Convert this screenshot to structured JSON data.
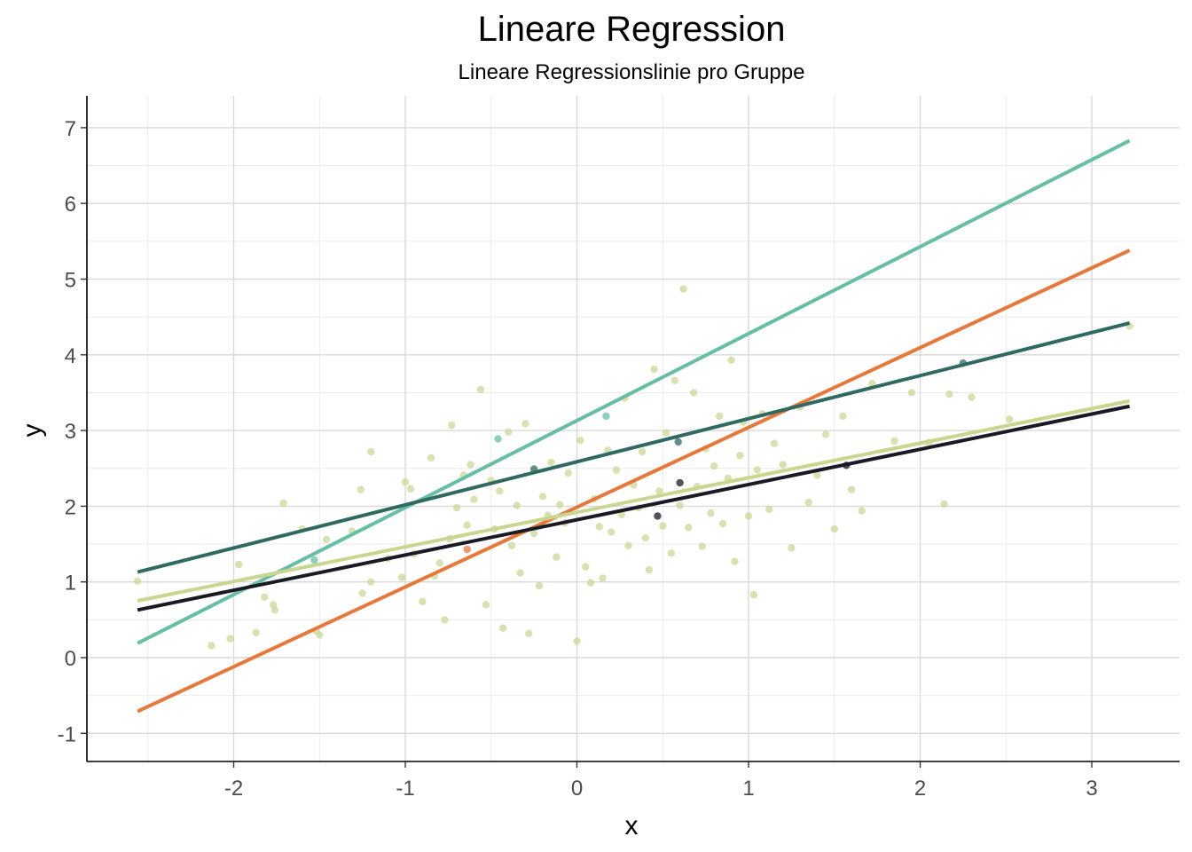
{
  "chart_data": {
    "type": "scatter",
    "title": "Lineare Regression",
    "subtitle": "Lineare Regressionslinie pro Gruppe",
    "xlabel": "x",
    "ylabel": "y",
    "xlim": [
      -2.6,
      3.3
    ],
    "ylim": [
      -1.4,
      7.4
    ],
    "x_ticks": [
      -2,
      -1,
      0,
      1,
      2,
      3
    ],
    "y_ticks": [
      -1,
      0,
      1,
      2,
      3,
      4,
      5,
      6,
      7
    ],
    "grid": true,
    "legend": "none",
    "lines": [
      {
        "color": "#66bfa5",
        "x": [
          -2.56,
          3.22
        ],
        "y": [
          0.19,
          6.83
        ]
      },
      {
        "color": "#e8783a",
        "x": [
          -2.56,
          3.22
        ],
        "y": [
          -0.71,
          5.38
        ]
      },
      {
        "color": "#2f6a60",
        "x": [
          -2.56,
          3.22
        ],
        "y": [
          1.13,
          4.42
        ]
      },
      {
        "color": "#c8d68e",
        "x": [
          -2.56,
          3.22
        ],
        "y": [
          0.75,
          3.39
        ]
      },
      {
        "color": "#1a1a24",
        "x": [
          -2.56,
          3.22
        ],
        "y": [
          0.63,
          3.32
        ]
      }
    ],
    "series": [
      {
        "color": "#66bfa5",
        "points": [
          [
            -0.46,
            2.89
          ],
          [
            0.17,
            3.19
          ],
          [
            -1.53,
            1.29
          ]
        ]
      },
      {
        "color": "#e8783a",
        "points": [
          [
            -0.64,
            1.43
          ]
        ]
      },
      {
        "color": "#2f6a60",
        "points": [
          [
            0.59,
            2.85
          ],
          [
            2.25,
            3.89
          ],
          [
            -0.25,
            2.49
          ]
        ]
      },
      {
        "color": "#1a1a24",
        "points": [
          [
            0.6,
            2.31
          ],
          [
            0.47,
            1.87
          ],
          [
            1.57,
            2.54
          ]
        ]
      },
      {
        "color": "#c8d68e",
        "points": [
          [
            -2.56,
            1.01
          ],
          [
            -2.13,
            0.16
          ],
          [
            -2.02,
            0.25
          ],
          [
            -1.97,
            1.23
          ],
          [
            -1.87,
            0.33
          ],
          [
            -1.82,
            0.8
          ],
          [
            -1.77,
            0.7
          ],
          [
            -1.76,
            0.63
          ],
          [
            -1.71,
            2.04
          ],
          [
            -1.6,
            1.7
          ],
          [
            -1.5,
            0.3
          ],
          [
            -1.46,
            1.56
          ],
          [
            -1.52,
            0.35
          ],
          [
            -1.31,
            1.67
          ],
          [
            -1.26,
            2.22
          ],
          [
            -1.25,
            0.85
          ],
          [
            -1.2,
            1.0
          ],
          [
            -1.2,
            2.72
          ],
          [
            -1.1,
            1.31
          ],
          [
            -1.02,
            1.06
          ],
          [
            -1.0,
            2.32
          ],
          [
            -0.97,
            2.23
          ],
          [
            -0.95,
            1.37
          ],
          [
            -0.9,
            0.74
          ],
          [
            -0.85,
            2.64
          ],
          [
            -0.83,
            1.08
          ],
          [
            -0.8,
            1.25
          ],
          [
            -0.77,
            0.5
          ],
          [
            -0.74,
            1.57
          ],
          [
            -0.73,
            3.07
          ],
          [
            -0.7,
            1.98
          ],
          [
            -0.66,
            2.41
          ],
          [
            -0.64,
            1.75
          ],
          [
            -0.62,
            2.55
          ],
          [
            -0.6,
            2.09
          ],
          [
            -0.56,
            3.54
          ],
          [
            -0.53,
            0.7
          ],
          [
            -0.5,
            2.34
          ],
          [
            -0.48,
            1.7
          ],
          [
            -0.45,
            2.2
          ],
          [
            -0.43,
            0.39
          ],
          [
            -0.4,
            2.98
          ],
          [
            -0.38,
            1.48
          ],
          [
            -0.35,
            2.01
          ],
          [
            -0.33,
            1.12
          ],
          [
            -0.3,
            3.09
          ],
          [
            -0.28,
            0.32
          ],
          [
            -0.25,
            1.64
          ],
          [
            -0.22,
            0.95
          ],
          [
            -0.2,
            2.13
          ],
          [
            -0.17,
            1.88
          ],
          [
            -0.15,
            2.58
          ],
          [
            -0.12,
            1.33
          ],
          [
            -0.1,
            2.02
          ],
          [
            -0.07,
            1.78
          ],
          [
            -0.05,
            2.44
          ],
          [
            0.0,
            0.22
          ],
          [
            0.02,
            2.87
          ],
          [
            0.05,
            1.2
          ],
          [
            0.08,
            0.99
          ],
          [
            0.1,
            2.1
          ],
          [
            0.13,
            1.73
          ],
          [
            0.15,
            1.05
          ],
          [
            0.18,
            2.74
          ],
          [
            0.2,
            1.66
          ],
          [
            0.23,
            2.48
          ],
          [
            0.26,
            1.89
          ],
          [
            0.28,
            3.43
          ],
          [
            0.3,
            1.48
          ],
          [
            0.33,
            2.28
          ],
          [
            0.36,
            1.98
          ],
          [
            0.38,
            2.72
          ],
          [
            0.4,
            1.58
          ],
          [
            0.42,
            1.16
          ],
          [
            0.45,
            3.81
          ],
          [
            0.48,
            2.2
          ],
          [
            0.5,
            1.74
          ],
          [
            0.52,
            2.97
          ],
          [
            0.55,
            1.38
          ],
          [
            0.57,
            3.66
          ],
          [
            0.6,
            2.01
          ],
          [
            0.62,
            4.87
          ],
          [
            0.65,
            1.72
          ],
          [
            0.68,
            3.5
          ],
          [
            0.7,
            2.26
          ],
          [
            0.73,
            1.47
          ],
          [
            0.75,
            2.76
          ],
          [
            0.78,
            1.91
          ],
          [
            0.8,
            2.53
          ],
          [
            0.83,
            3.19
          ],
          [
            0.85,
            1.77
          ],
          [
            0.88,
            2.37
          ],
          [
            0.9,
            3.93
          ],
          [
            0.92,
            1.27
          ],
          [
            0.95,
            2.67
          ],
          [
            0.97,
            3.11
          ],
          [
            1.0,
            1.87
          ],
          [
            1.03,
            0.83
          ],
          [
            1.05,
            2.48
          ],
          [
            1.08,
            3.22
          ],
          [
            1.12,
            1.96
          ],
          [
            1.15,
            2.83
          ],
          [
            1.2,
            2.55
          ],
          [
            1.25,
            1.45
          ],
          [
            1.3,
            3.31
          ],
          [
            1.35,
            2.05
          ],
          [
            1.4,
            2.41
          ],
          [
            1.45,
            2.95
          ],
          [
            1.5,
            1.7
          ],
          [
            1.55,
            3.19
          ],
          [
            1.6,
            2.22
          ],
          [
            1.66,
            1.94
          ],
          [
            1.72,
            3.62
          ],
          [
            1.85,
            2.86
          ],
          [
            1.95,
            3.5
          ],
          [
            2.05,
            2.84
          ],
          [
            2.14,
            2.03
          ],
          [
            2.17,
            3.48
          ],
          [
            2.3,
            3.44
          ],
          [
            2.52,
            3.15
          ],
          [
            3.22,
            4.38
          ]
        ]
      }
    ]
  }
}
